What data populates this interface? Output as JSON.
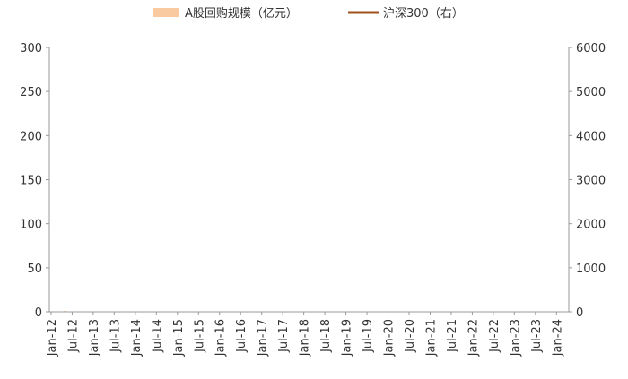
{
  "chart_data": {
    "type": "bar+line",
    "legend": {
      "placement": "top",
      "items": [
        {
          "label": "A股回购规模（亿元）",
          "color": "#f9c9a0",
          "kind": "bar"
        },
        {
          "label": "沪深300（右）",
          "color": "#a0521c",
          "kind": "line"
        }
      ]
    },
    "y_left": {
      "range": [
        0,
        300
      ],
      "ticks": [
        "0",
        "50",
        "100",
        "150",
        "200",
        "250",
        "300"
      ]
    },
    "y_right": {
      "range": [
        0,
        6000
      ],
      "ticks": [
        "0",
        "1000",
        "2000",
        "3000",
        "4000",
        "5000",
        "6000"
      ]
    },
    "x_axis": {
      "start": "2012-01",
      "tick_labels": [
        "Jan-12",
        "Jul-12",
        "Jan-13",
        "Jul-13",
        "Jan-14",
        "Jul-14",
        "Jan-15",
        "Jul-15",
        "Jan-16",
        "Jul-16",
        "Jan-17",
        "Jul-17",
        "Jan-18",
        "Jul-18",
        "Jan-19",
        "Jul-19",
        "Jan-20",
        "Jul-20",
        "Jan-21",
        "Jul-21",
        "Jan-22",
        "Jul-22",
        "Jan-23",
        "Jul-23",
        "Jan-24"
      ]
    },
    "series": [
      {
        "name": "A股回购规模（亿元）",
        "axis": "left",
        "color": "#f9c9a0",
        "values": [
          0,
          0,
          0,
          0,
          1,
          0,
          0,
          0,
          0,
          0,
          0,
          0,
          0,
          0,
          0,
          0,
          0,
          0,
          0,
          0,
          0,
          0,
          0,
          0,
          0,
          0,
          0,
          0,
          0,
          0,
          0,
          0,
          0,
          0,
          0,
          0,
          0,
          0,
          0,
          0,
          0,
          0,
          0,
          0,
          0,
          0,
          0,
          0,
          0,
          0,
          0,
          0,
          0,
          0,
          0,
          0,
          0,
          0,
          0,
          0,
          0,
          0,
          0,
          0,
          0,
          0,
          0,
          0,
          0,
          0,
          0,
          0,
          0,
          0,
          0,
          0,
          0,
          0,
          0,
          0,
          0,
          0,
          0,
          0,
          0,
          0,
          0,
          0,
          0,
          0,
          0,
          0,
          0,
          0,
          0,
          0,
          0,
          0,
          0,
          0,
          0,
          0,
          0,
          0,
          0,
          0,
          0,
          0,
          0,
          0,
          0,
          0,
          0,
          0,
          0,
          0,
          0,
          0,
          0,
          0,
          0,
          0,
          0,
          0,
          0,
          0,
          0,
          0,
          0,
          0,
          0,
          0,
          0,
          0,
          0,
          0,
          0,
          0,
          0,
          0,
          0,
          0,
          0,
          0,
          0,
          0,
          0,
          0,
          0,
          0,
          0,
          0,
          0,
          0,
          0,
          0,
          0,
          0,
          0
        ]
      },
      {
        "name": "沪深300（右）",
        "axis": "right",
        "color": "#a0521c",
        "values": []
      }
    ]
  }
}
